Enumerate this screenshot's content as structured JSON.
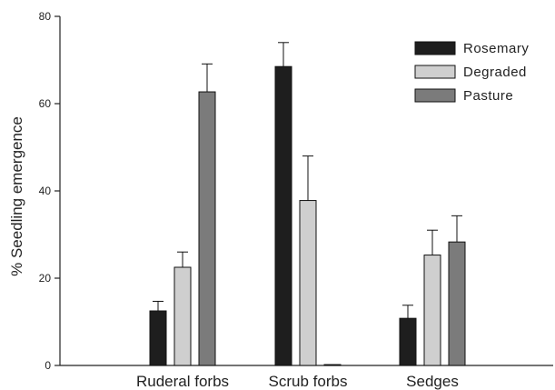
{
  "chart_data": {
    "type": "bar",
    "categories": [
      "Ruderal forbs",
      "Scrub forbs",
      "Sedges"
    ],
    "series": [
      {
        "name": "Rosemary",
        "values": [
          12.5,
          68.5,
          10.8
        ],
        "errors": [
          2.2,
          5.5,
          3.0
        ],
        "color": "#1e1e1e"
      },
      {
        "name": "Degraded",
        "values": [
          22.5,
          37.8,
          25.3
        ],
        "errors": [
          3.5,
          10.2,
          5.7
        ],
        "color": "#cfcfcf"
      },
      {
        "name": "Pasture",
        "values": [
          62.7,
          0.2,
          28.3
        ],
        "errors": [
          6.4,
          0,
          6.0
        ],
        "color": "#7b7b7b"
      }
    ],
    "xlabel": "",
    "ylabel": "% Seedling emergence",
    "ylim": [
      0,
      80
    ],
    "yticks": [
      0,
      20,
      40,
      60,
      80
    ],
    "grid": false,
    "legend_position": "top-right"
  }
}
